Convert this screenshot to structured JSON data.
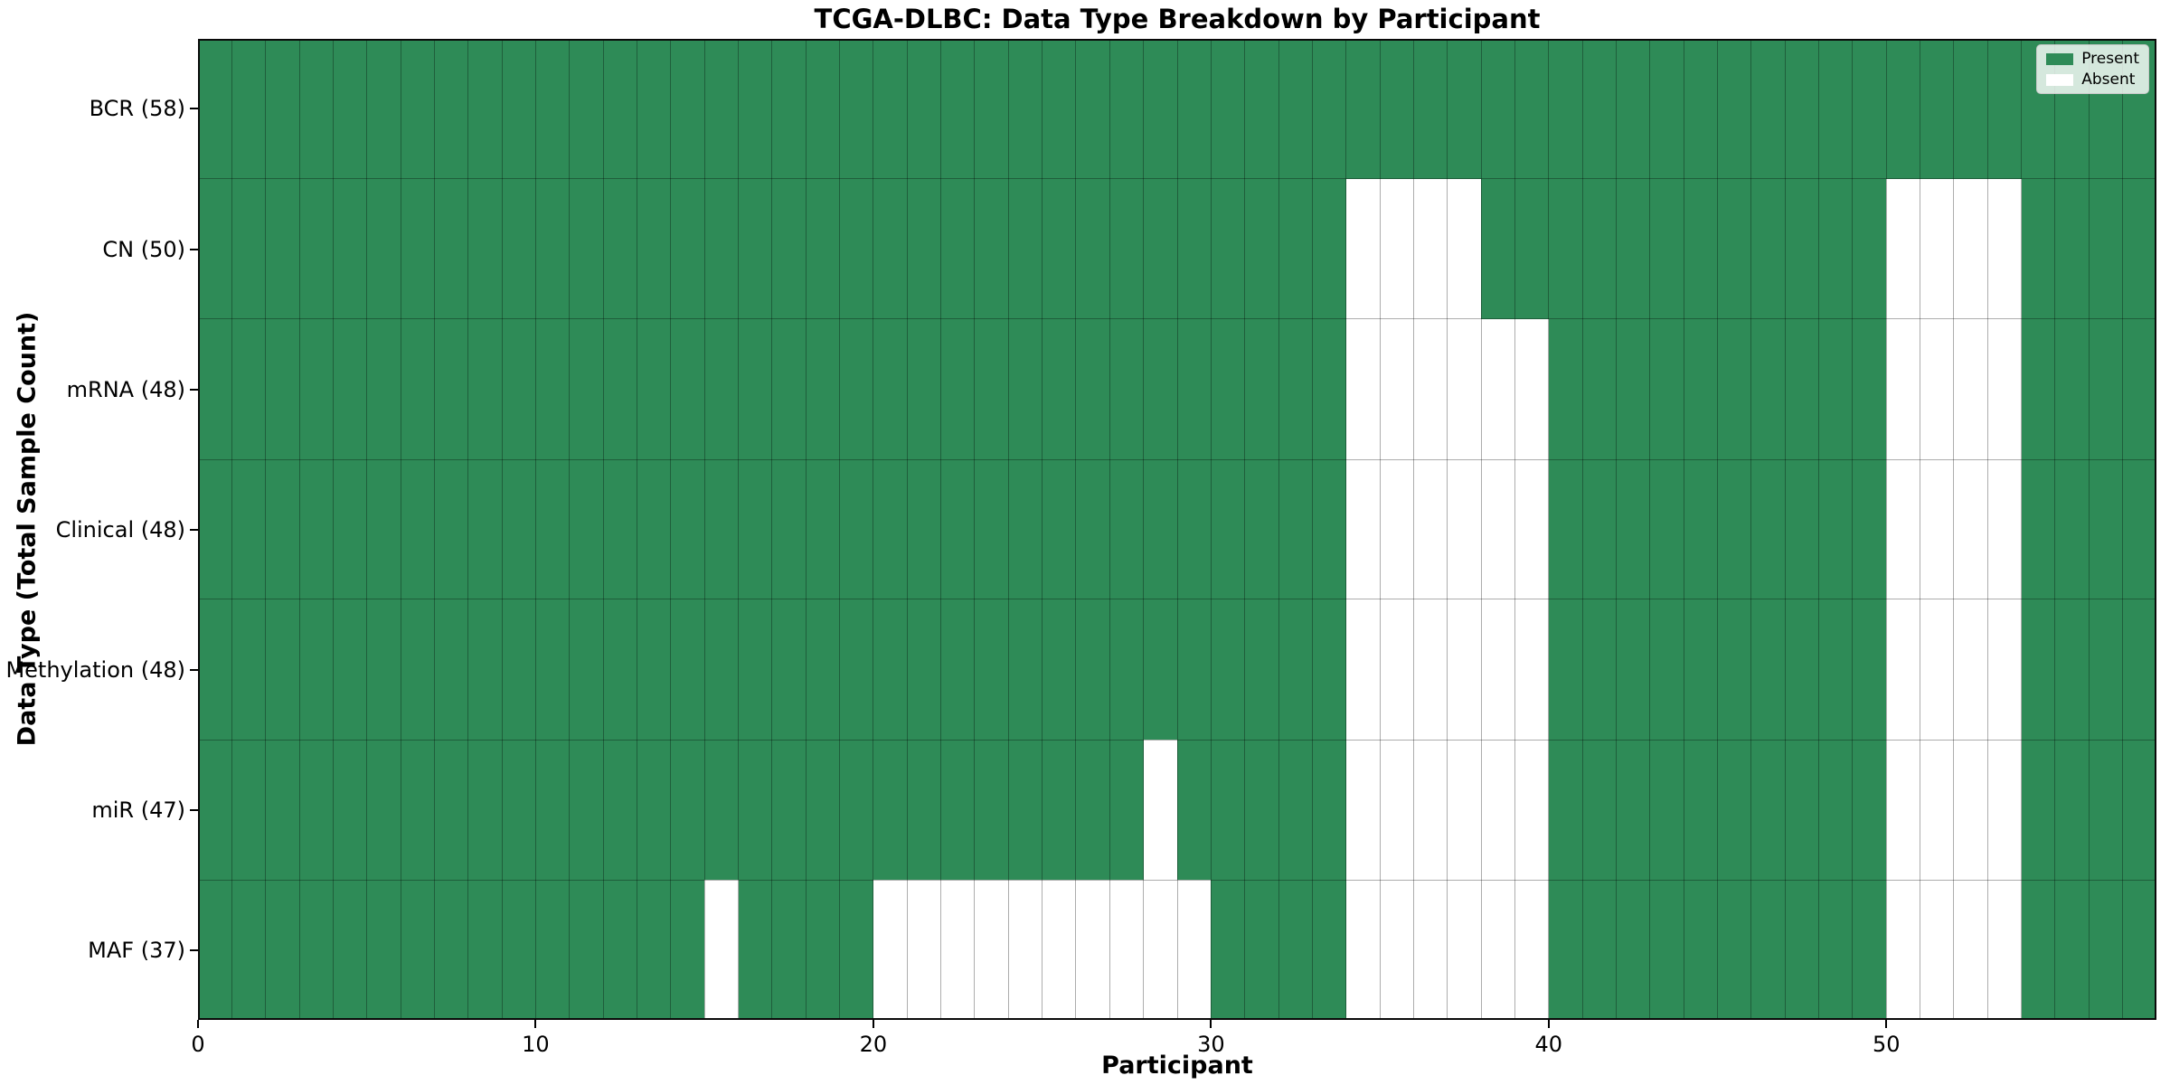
{
  "chart_data": {
    "type": "heatmap",
    "title": "TCGA-DLBC: Data Type Breakdown by Participant",
    "xlabel": "Participant",
    "ylabel": "Data Type (Total Sample Count)",
    "x_ticks": [
      0,
      10,
      20,
      30,
      40,
      50
    ],
    "n_participants": 58,
    "x_range": [
      0,
      58
    ],
    "grid": true,
    "legend_position": "upper right",
    "colors": {
      "present": "#2e8b57",
      "absent": "#ffffff"
    },
    "legend": [
      {
        "label": "Present",
        "color": "#2e8b57"
      },
      {
        "label": "Absent",
        "color": "#ffffff"
      }
    ],
    "rows": [
      {
        "label": "BCR (58)",
        "data_type": "BCR",
        "total": 58,
        "absent_participants": []
      },
      {
        "label": "CN (50)",
        "data_type": "CN",
        "total": 50,
        "absent_participants": [
          34,
          35,
          36,
          37,
          50,
          51,
          52,
          53
        ]
      },
      {
        "label": "mRNA (48)",
        "data_type": "mRNA",
        "total": 48,
        "absent_participants": [
          34,
          35,
          36,
          37,
          38,
          39,
          50,
          51,
          52,
          53
        ]
      },
      {
        "label": "Clinical (48)",
        "data_type": "Clinical",
        "total": 48,
        "absent_participants": [
          34,
          35,
          36,
          37,
          38,
          39,
          50,
          51,
          52,
          53
        ]
      },
      {
        "label": "Methylation (48)",
        "data_type": "Methylation",
        "total": 48,
        "absent_participants": [
          34,
          35,
          36,
          37,
          38,
          39,
          50,
          51,
          52,
          53
        ]
      },
      {
        "label": "miR (47)",
        "data_type": "miR",
        "total": 47,
        "absent_participants": [
          28,
          34,
          35,
          36,
          37,
          38,
          39,
          50,
          51,
          52,
          53
        ]
      },
      {
        "label": "MAF (37)",
        "data_type": "MAF",
        "total": 37,
        "absent_participants": [
          15,
          20,
          21,
          22,
          23,
          24,
          25,
          26,
          27,
          28,
          29,
          34,
          35,
          36,
          37,
          38,
          39,
          50,
          51,
          52,
          53
        ]
      }
    ]
  }
}
